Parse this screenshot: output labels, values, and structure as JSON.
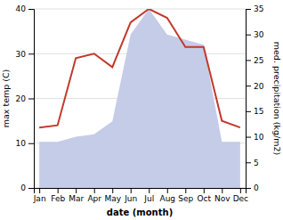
{
  "chart_data": {
    "type": "line",
    "xlabel": "date (month)",
    "ylabel": "max temp (C)",
    "y2label": "med. precipitation (kg/m2)",
    "categories": [
      "Jan",
      "Feb",
      "Mar",
      "Apr",
      "May",
      "Jun",
      "Jul",
      "Aug",
      "Sep",
      "Oct",
      "Nov",
      "Dec"
    ],
    "series": [
      {
        "type": "area",
        "axis": "y2",
        "color": "#c5cce8",
        "values": [
          9.0,
          9.0,
          10.0,
          10.5,
          13.0,
          30.0,
          35.0,
          30.0,
          29.0,
          28.0,
          9.0,
          9.0
        ]
      },
      {
        "type": "line",
        "color": "#c0392b",
        "values": [
          13.5,
          14.0,
          29.0,
          30.0,
          27.0,
          37.0,
          40.0,
          38.0,
          31.5,
          31.5,
          15.0,
          13.5
        ]
      }
    ],
    "ylim": [
      0,
      40
    ],
    "yticks": [
      0,
      10,
      20,
      30,
      40
    ],
    "y2lim": [
      0,
      35
    ],
    "y2ticks": [
      0,
      5,
      10,
      15,
      20,
      25,
      30,
      35
    ],
    "grid": true
  }
}
